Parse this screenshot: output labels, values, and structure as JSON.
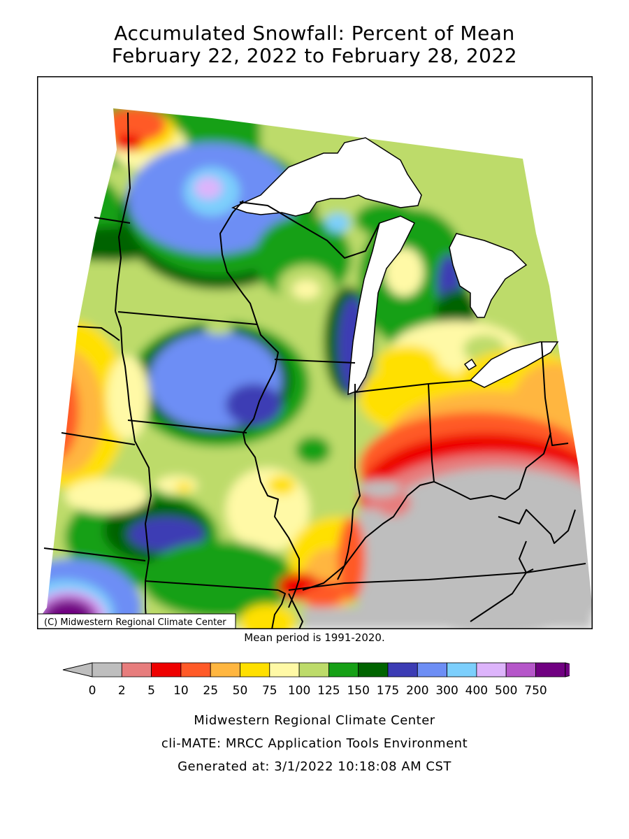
{
  "title_line1": "Accumulated Snowfall: Percent of Mean",
  "title_line2": "February 22, 2022 to February 28, 2022",
  "copyright": "(C) Midwestern Regional Climate Center",
  "mean_period": "Mean period is 1991-2020.",
  "legend": {
    "labels": [
      "0",
      "2",
      "5",
      "10",
      "25",
      "50",
      "75",
      "100",
      "125",
      "150",
      "175",
      "200",
      "300",
      "400",
      "500",
      "750"
    ],
    "colors": [
      "#bebebe",
      "#e77d7d",
      "#ee0000",
      "#ff5a28",
      "#ffb640",
      "#ffe000",
      "#fff9a6",
      "#bddb6a",
      "#16a016",
      "#006400",
      "#3c3cb4",
      "#6d8ef5",
      "#7ccffc",
      "#ddb4fb",
      "#b556c9",
      "#700081"
    ],
    "under_color": "#bebebe",
    "over_color": "#700081"
  },
  "footer": {
    "line1": "Midwestern Regional Climate Center",
    "line2": "cli-MATE: MRCC Application Tools Environment",
    "line3": "Generated at: 3/1/2022 10:18:08 AM CST"
  }
}
